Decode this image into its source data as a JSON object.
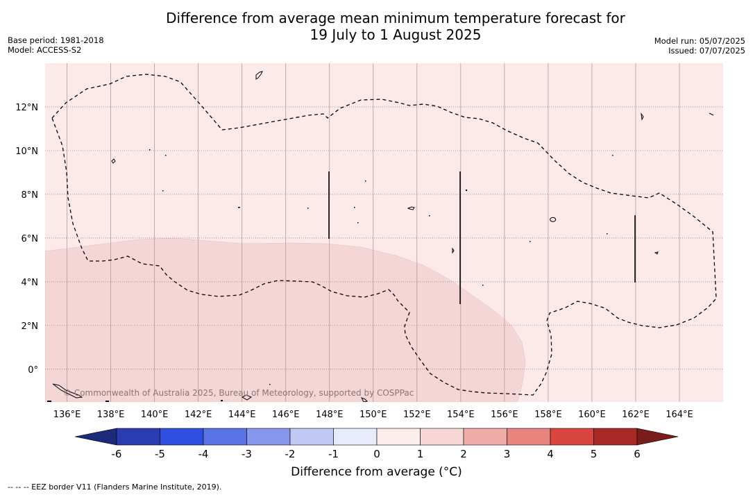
{
  "title_line1": "Difference from average mean minimum temperature forecast for",
  "title_line2": "19 July to 1 August 2025",
  "base_period": "Base period: 1981-2018",
  "model": "Model: ACCESS-S2",
  "model_run": "Model run: 05/07/2025",
  "issued": "Issued: 07/07/2025",
  "copyright": "© Commonwealth of Australia 2025, Bureau of Meteorology, supported by COSPPac",
  "colorbar_title": "Difference from average (°C)",
  "footnote": "-- -- -- EEZ border V11 (Flanders Marine Institute, 2019).",
  "lon_ticks": [
    "136°E",
    "138°E",
    "140°E",
    "142°E",
    "144°E",
    "146°E",
    "148°E",
    "150°E",
    "152°E",
    "154°E",
    "156°E",
    "158°E",
    "160°E",
    "162°E",
    "164°E"
  ],
  "lat_ticks": [
    "12°N",
    "10°N",
    "8°N",
    "6°N",
    "4°N",
    "2°N",
    "0°"
  ],
  "colorbar_ticks": [
    "-6",
    "-5",
    "-4",
    "-3",
    "-2",
    "-1",
    "0",
    "1",
    "2",
    "3",
    "4",
    "5",
    "6"
  ],
  "colorbar_colors": [
    "#1b2a7a",
    "#2a3db0",
    "#2f4fe0",
    "#5a74e6",
    "#8798ec",
    "#c2c8f4",
    "#e8ebfb",
    "#fdeeee",
    "#f7d6d6",
    "#efaba8",
    "#e8857e",
    "#d8463f",
    "#a82a27",
    "#7a1c1a"
  ],
  "colors": {
    "light_pink": "#fceaea",
    "pink": "#f5d6d6",
    "border": "#000000"
  }
}
